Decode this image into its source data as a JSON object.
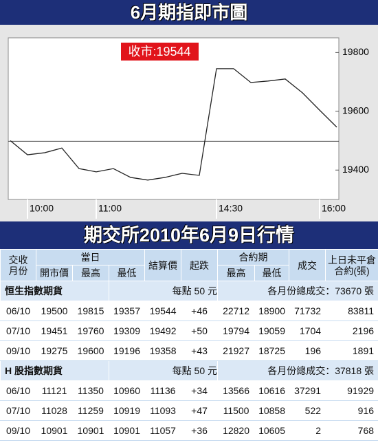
{
  "chart_data": {
    "type": "line",
    "title": "6月期指即市圖",
    "annotation": "收市:19544",
    "x": [
      null,
      "10:00",
      null,
      null,
      null,
      "11:00",
      null,
      null,
      null,
      null,
      null,
      null,
      "14:30",
      null,
      null,
      null,
      null,
      null,
      "16:00",
      null
    ],
    "values": [
      19500,
      19452,
      19459,
      19475,
      19405,
      19394,
      19405,
      19375,
      19366,
      19375,
      19389,
      19382,
      19745,
      19745,
      19698,
      19703,
      19710,
      19663,
      19604,
      19546
    ],
    "color": "#222222",
    "reference_line": 19498,
    "ylim": [
      19300,
      19850
    ],
    "yticks": [
      19400,
      19600,
      19800
    ],
    "grid": false
  },
  "table": {
    "title": "期交所2010年6月9日行情",
    "header": {
      "month": [
        "交收",
        "月份"
      ],
      "day": "當日",
      "day_cols": [
        "開市價",
        "最高",
        "最低"
      ],
      "settle": "結算價",
      "change": "起跌",
      "contract": "合約期",
      "contract_cols": [
        "最高",
        "最低"
      ],
      "volume": "成交",
      "open_interest": [
        "上日未平倉",
        "合約(張)"
      ]
    },
    "sections": [
      {
        "name": "恒生指數期貨",
        "point": "每點 50 元",
        "total": "各月份總成交：73670 張",
        "rows": [
          [
            "06/10",
            19500,
            19815,
            19357,
            19544,
            "+46",
            22712,
            18900,
            71732,
            83811
          ],
          [
            "07/10",
            19451,
            19760,
            19309,
            19492,
            "+50",
            19794,
            19059,
            1704,
            2196
          ],
          [
            "09/10",
            19275,
            19600,
            19196,
            19358,
            "+43",
            21927,
            18725,
            196,
            1891
          ]
        ]
      },
      {
        "name": "H 股指數期貨",
        "point": "每點 50 元",
        "total": "各月份總成交：37818 張",
        "rows": [
          [
            "06/10",
            11121,
            11350,
            10960,
            11136,
            "+34",
            13566,
            10616,
            37291,
            91929
          ],
          [
            "07/10",
            11028,
            11259,
            10919,
            11093,
            "+47",
            11500,
            10858,
            522,
            916
          ],
          [
            "09/10",
            10901,
            10901,
            10901,
            11057,
            "+36",
            12820,
            10605,
            2,
            768
          ]
        ]
      }
    ]
  }
}
